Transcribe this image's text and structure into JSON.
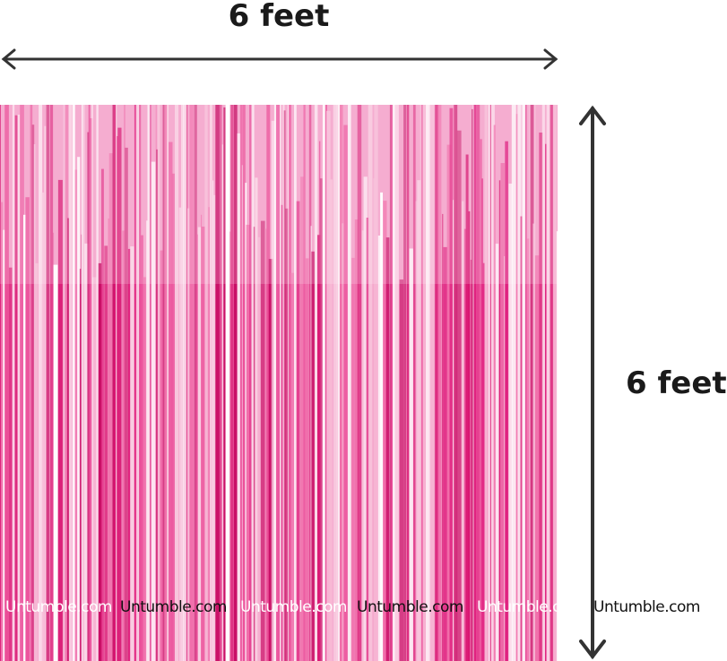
{
  "width_label": "6 feet",
  "height_label": "6 feet",
  "watermark": "Untumble.com",
  "colors": {
    "curtain_pink": "#e0207e",
    "curtain_light": "#f7c6dd",
    "arrow": "#333333"
  }
}
